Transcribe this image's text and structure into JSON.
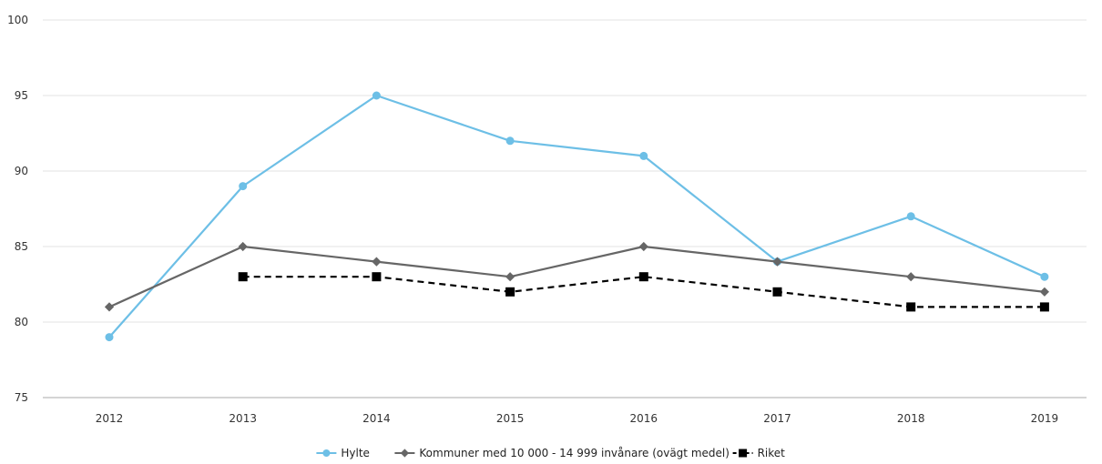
{
  "chart_data": {
    "type": "line",
    "title": "",
    "xlabel": "",
    "ylabel": "",
    "categories": [
      "2012",
      "2013",
      "2014",
      "2015",
      "2016",
      "2017",
      "2018",
      "2019"
    ],
    "ylim": [
      75,
      100
    ],
    "yticks": [
      "75",
      "80",
      "85",
      "90",
      "95",
      "100"
    ],
    "grid": true,
    "legend_position": "bottom",
    "series": [
      {
        "name": "Hylte",
        "color": "#6dbfe6",
        "marker": "circle",
        "dash": "solid",
        "values": [
          79,
          89,
          95,
          92,
          91,
          84,
          87,
          83
        ]
      },
      {
        "name": "Kommuner med 10 000 - 14 999 invånare (ovägt medel)",
        "color": "#666666",
        "marker": "diamond",
        "dash": "solid",
        "values": [
          81,
          85,
          84,
          83,
          85,
          84,
          83,
          82
        ]
      },
      {
        "name": "Riket",
        "color": "#000000",
        "marker": "square",
        "dash": "dashed",
        "values": [
          null,
          83,
          83,
          82,
          83,
          82,
          81,
          81
        ]
      }
    ]
  }
}
